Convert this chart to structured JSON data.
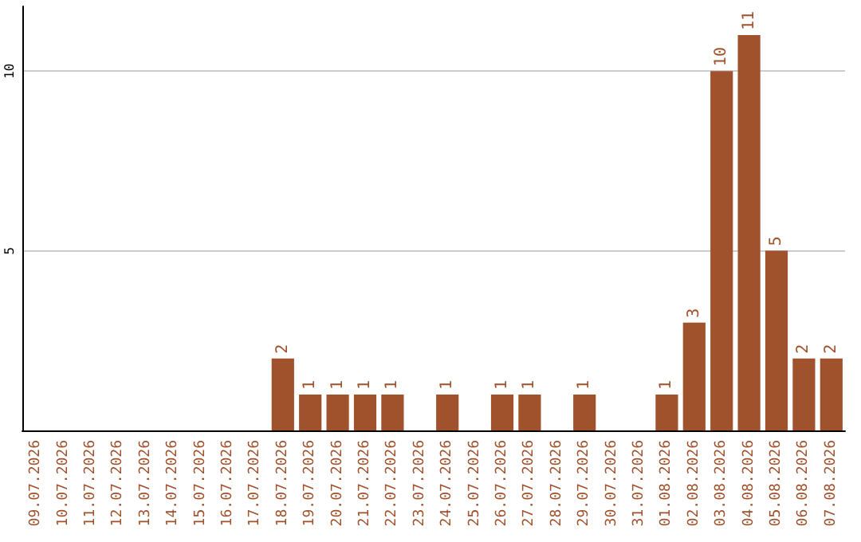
{
  "chart_data": {
    "type": "bar",
    "categories": [
      "09.07.2026",
      "10.07.2026",
      "11.07.2026",
      "12.07.2026",
      "13.07.2026",
      "14.07.2026",
      "15.07.2026",
      "16.07.2026",
      "17.07.2026",
      "18.07.2026",
      "19.07.2026",
      "20.07.2026",
      "21.07.2026",
      "22.07.2026",
      "23.07.2026",
      "24.07.2026",
      "25.07.2026",
      "26.07.2026",
      "27.07.2026",
      "28.07.2026",
      "29.07.2026",
      "30.07.2026",
      "31.07.2026",
      "01.08.2026",
      "02.08.2026",
      "03.08.2026",
      "04.08.2026",
      "05.08.2026",
      "06.08.2026",
      "07.08.2026"
    ],
    "values": [
      0,
      0,
      0,
      0,
      0,
      0,
      0,
      0,
      0,
      2,
      1,
      1,
      1,
      1,
      0,
      1,
      0,
      1,
      1,
      0,
      1,
      0,
      0,
      1,
      3,
      10,
      11,
      5,
      2,
      2
    ],
    "value_labels": [
      null,
      null,
      null,
      null,
      null,
      null,
      null,
      null,
      null,
      "2",
      "1",
      "1",
      "1",
      "1",
      null,
      "1",
      null,
      "1",
      "1",
      null,
      "1",
      null,
      null,
      "1",
      "3",
      "10",
      "11",
      "5",
      "2",
      "2"
    ],
    "color": "#a0522d",
    "ylim": [
      0,
      11.8
    ],
    "yticks": [
      5,
      10
    ],
    "grid": "y"
  }
}
